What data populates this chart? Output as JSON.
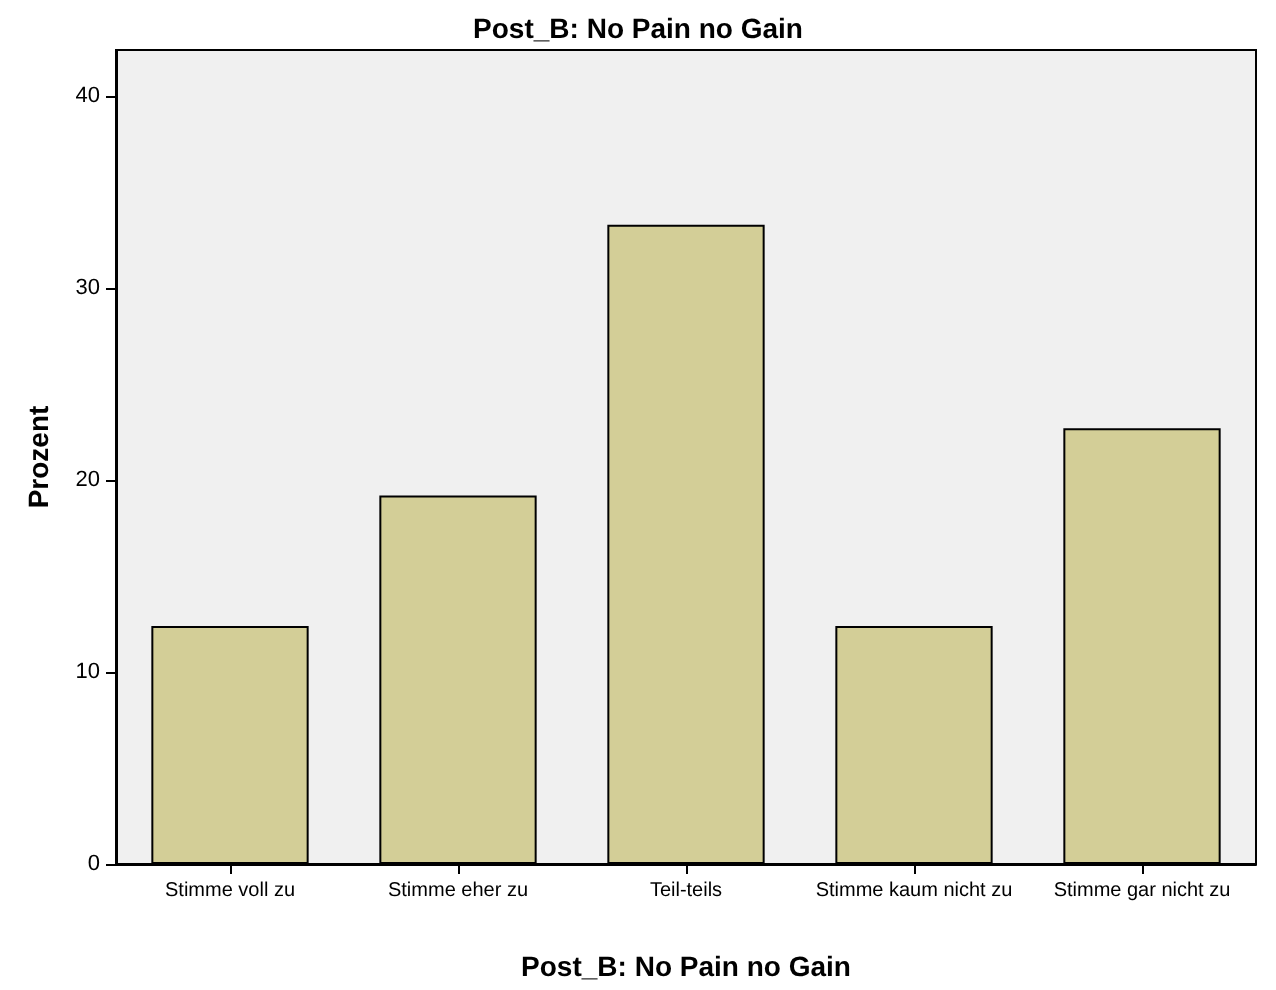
{
  "chart_data": {
    "type": "bar",
    "title": "Post_B: No Pain no Gain",
    "xlabel": "Post_B: No Pain no Gain",
    "ylabel": "Prozent",
    "categories": [
      "Stimme voll zu",
      "Stimme eher zu",
      "Teil-teils",
      "Stimme kaum nicht zu",
      "Stimme gar nicht zu"
    ],
    "values": [
      12.4,
      19.2,
      33.3,
      12.4,
      22.7
    ],
    "color": "#d3ce97",
    "ylim": [
      0,
      42.4
    ],
    "yticks": [
      0,
      10,
      20,
      30,
      40
    ],
    "grid": false
  }
}
